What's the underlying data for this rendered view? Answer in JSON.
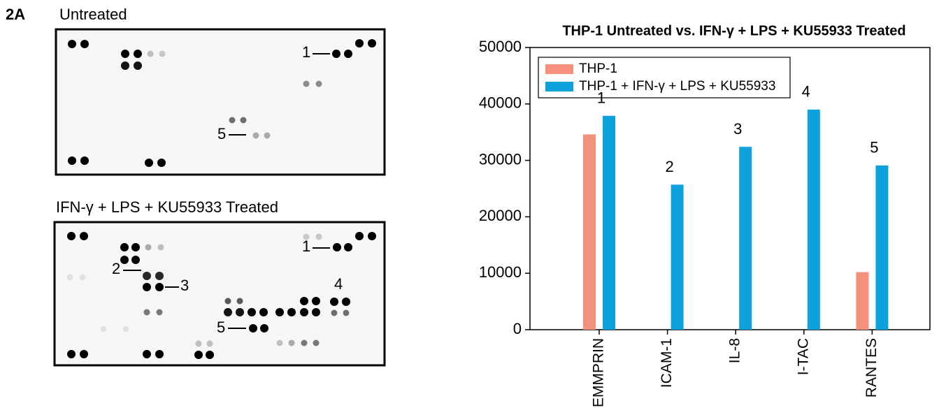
{
  "figure_label": "2A",
  "blots": [
    {
      "title": "Untreated",
      "labels": [
        "1",
        "5"
      ]
    },
    {
      "title": "IFN-γ + LPS + KU55933 Treated",
      "labels": [
        "1",
        "2",
        "3",
        "4",
        "5"
      ]
    }
  ],
  "chart_data": {
    "type": "bar",
    "title": "THP-1 Untreated vs. IFN-γ + LPS + KU55933 Treated",
    "categories": [
      "EMMPRIN",
      "ICAM-1",
      "IL-8",
      "I-TAC",
      "RANTES"
    ],
    "series": [
      {
        "name": "THP-1",
        "color": "#f4907c",
        "values": [
          34600,
          0,
          0,
          0,
          10200
        ]
      },
      {
        "name": "THP-1 + IFN-γ + LPS + KU55933",
        "color": "#0ea1db",
        "values": [
          37900,
          25700,
          32400,
          39000,
          29100
        ]
      }
    ],
    "bar_annotations": [
      "1",
      "2",
      "3",
      "4",
      "5"
    ],
    "ylim": [
      0,
      50000
    ],
    "yticks": [
      0,
      10000,
      20000,
      30000,
      40000,
      50000
    ],
    "legend": "upper left"
  }
}
